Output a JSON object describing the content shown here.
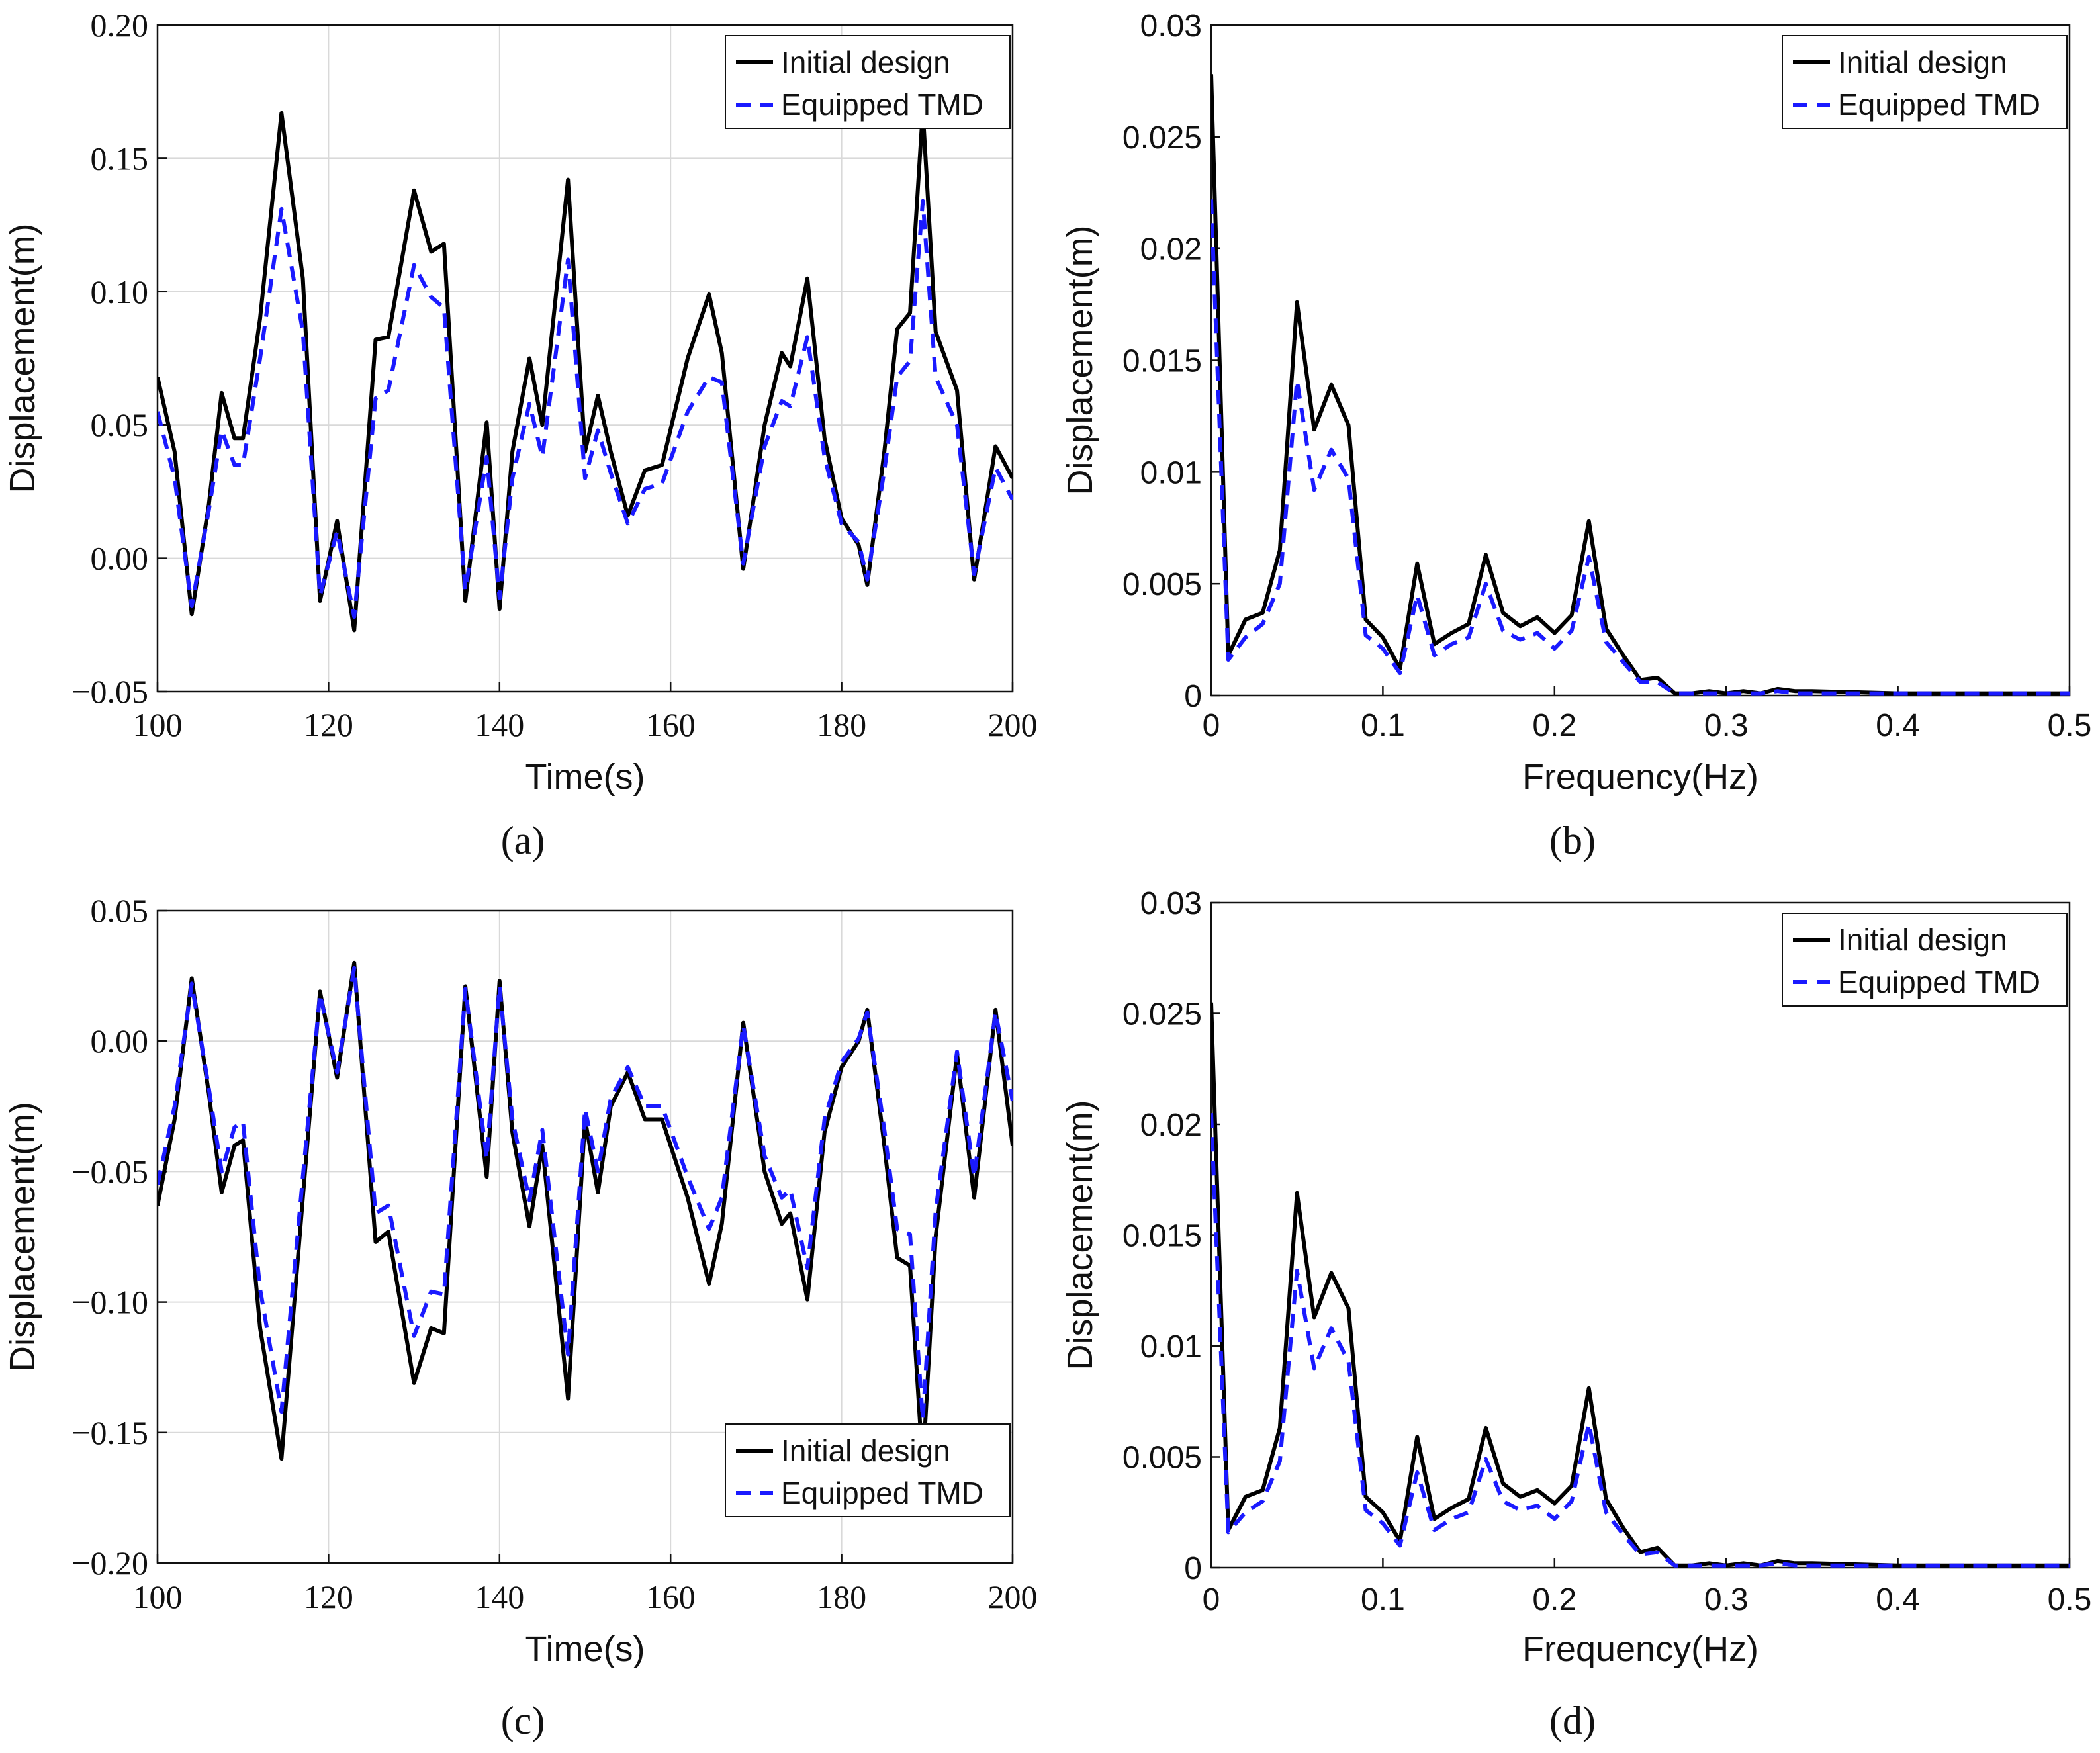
{
  "chart_data": [
    {
      "id": "a",
      "type": "line",
      "caption": "(a)",
      "xlabel": "Time(s)",
      "ylabel": "Displacement(m)",
      "xlim": [
        100,
        200
      ],
      "ylim": [
        -0.05,
        0.2
      ],
      "xticks": [
        "100",
        "120",
        "140",
        "160",
        "180",
        "200"
      ],
      "yticks": [
        "−0.05",
        "0.00",
        "0.05",
        "0.10",
        "0.15",
        "0.20"
      ],
      "grid": true,
      "legend_position": "top-right",
      "series": [
        {
          "name": "Initial design",
          "color": "#000000",
          "style": "solid",
          "x": [
            100,
            102,
            104,
            106,
            107.5,
            109,
            110,
            112,
            114.5,
            117,
            119,
            121,
            123,
            125.5,
            127,
            130,
            132,
            133.5,
            136,
            138.5,
            140,
            141.5,
            143.5,
            145,
            148,
            150,
            151.5,
            153,
            155,
            157,
            159,
            162,
            164.5,
            166,
            168.5,
            171,
            173,
            174,
            176,
            178,
            180,
            182,
            183,
            185,
            186.5,
            188,
            189.5,
            191,
            193.5,
            195.5,
            198,
            200
          ],
          "y": [
            0.068,
            0.04,
            -0.021,
            0.02,
            0.062,
            0.045,
            0.045,
            0.09,
            0.167,
            0.105,
            -0.016,
            0.014,
            -0.027,
            0.082,
            0.083,
            0.138,
            0.115,
            0.118,
            -0.016,
            0.051,
            -0.019,
            0.04,
            0.075,
            0.05,
            0.142,
            0.04,
            0.061,
            0.04,
            0.016,
            0.033,
            0.035,
            0.075,
            0.099,
            0.077,
            -0.004,
            0.05,
            0.077,
            0.072,
            0.105,
            0.045,
            0.015,
            0.005,
            -0.01,
            0.04,
            0.086,
            0.092,
            0.168,
            0.085,
            0.063,
            -0.008,
            0.042,
            0.03
          ]
        },
        {
          "name": "Equipped TMD",
          "color": "#1a1aff",
          "style": "dashed",
          "x": [
            100,
            102,
            104,
            106,
            107.5,
            109,
            110,
            112,
            114.5,
            117,
            119,
            121,
            123,
            125.5,
            127,
            130,
            132,
            133.5,
            136,
            138.5,
            140,
            141.5,
            143.5,
            145,
            148,
            150,
            151.5,
            153,
            155,
            157,
            159,
            162,
            164.5,
            166,
            168.5,
            171,
            173,
            174,
            176,
            178,
            180,
            182,
            183,
            185,
            186.5,
            188,
            189.5,
            191,
            193.5,
            195.5,
            198,
            200
          ],
          "y": [
            0.055,
            0.03,
            -0.018,
            0.018,
            0.048,
            0.035,
            0.035,
            0.075,
            0.131,
            0.085,
            -0.014,
            0.01,
            -0.022,
            0.06,
            0.063,
            0.11,
            0.098,
            0.094,
            -0.012,
            0.038,
            -0.015,
            0.03,
            0.058,
            0.038,
            0.112,
            0.03,
            0.048,
            0.032,
            0.013,
            0.026,
            0.028,
            0.055,
            0.068,
            0.066,
            -0.002,
            0.042,
            0.059,
            0.057,
            0.083,
            0.038,
            0.013,
            0.006,
            -0.008,
            0.033,
            0.068,
            0.074,
            0.134,
            0.068,
            0.05,
            -0.006,
            0.034,
            0.022
          ]
        }
      ]
    },
    {
      "id": "b",
      "type": "line",
      "caption": "(b)",
      "xlabel": "Frequency(Hz)",
      "ylabel": "Displacement(m)",
      "xlim": [
        0,
        0.5
      ],
      "ylim": [
        0,
        0.03
      ],
      "xticks": [
        "0",
        "0.1",
        "0.2",
        "0.3",
        "0.4",
        "0.5"
      ],
      "yticks": [
        "0",
        "0.005",
        "0.01",
        "0.015",
        "0.02",
        "0.025",
        "0.03"
      ],
      "grid": false,
      "legend_position": "top-right",
      "series": [
        {
          "name": "Initial design",
          "color": "#000000",
          "style": "solid",
          "x": [
            0,
            0.01,
            0.02,
            0.03,
            0.04,
            0.05,
            0.06,
            0.07,
            0.08,
            0.09,
            0.1,
            0.11,
            0.12,
            0.13,
            0.14,
            0.15,
            0.16,
            0.17,
            0.18,
            0.19,
            0.2,
            0.21,
            0.22,
            0.23,
            0.24,
            0.25,
            0.26,
            0.27,
            0.28,
            0.29,
            0.3,
            0.31,
            0.32,
            0.33,
            0.34,
            0.35,
            0.4,
            0.45,
            0.5
          ],
          "y": [
            0.0278,
            0.0018,
            0.0034,
            0.0037,
            0.0065,
            0.0176,
            0.0119,
            0.0139,
            0.0121,
            0.0034,
            0.0026,
            0.0012,
            0.0059,
            0.0023,
            0.0028,
            0.0032,
            0.0063,
            0.0037,
            0.0031,
            0.0035,
            0.0028,
            0.0036,
            0.0078,
            0.003,
            0.0018,
            0.0007,
            0.0008,
            0.0001,
            0.0001,
            0.0002,
            0.0001,
            0.0002,
            0.0001,
            0.0003,
            0.0002,
            0.0002,
            0.0001,
            0.0001,
            0.0001
          ]
        },
        {
          "name": "Equipped TMD",
          "color": "#1a1aff",
          "style": "dashed",
          "x": [
            0,
            0.01,
            0.02,
            0.03,
            0.04,
            0.05,
            0.06,
            0.07,
            0.08,
            0.09,
            0.1,
            0.11,
            0.12,
            0.13,
            0.14,
            0.15,
            0.16,
            0.17,
            0.18,
            0.19,
            0.2,
            0.21,
            0.22,
            0.23,
            0.24,
            0.25,
            0.26,
            0.27,
            0.28,
            0.29,
            0.3,
            0.31,
            0.32,
            0.33,
            0.34,
            0.35,
            0.4,
            0.45,
            0.5
          ],
          "y": [
            0.0222,
            0.0016,
            0.0026,
            0.0032,
            0.005,
            0.0141,
            0.0092,
            0.011,
            0.0097,
            0.0027,
            0.0021,
            0.001,
            0.0045,
            0.0018,
            0.0023,
            0.0026,
            0.005,
            0.0029,
            0.0025,
            0.0028,
            0.0021,
            0.0029,
            0.0062,
            0.0024,
            0.0015,
            0.0006,
            0.0006,
            0.0001,
            0.0001,
            0.0001,
            0.0001,
            0.0001,
            0.0001,
            0.0002,
            0.0001,
            0.0001,
            0.0001,
            0.0001,
            0.0001
          ]
        }
      ]
    },
    {
      "id": "c",
      "type": "line",
      "caption": "(c)",
      "xlabel": "Time(s)",
      "ylabel": "Displacement(m)",
      "xlim": [
        100,
        200
      ],
      "ylim": [
        -0.2,
        0.05
      ],
      "xticks": [
        "100",
        "120",
        "140",
        "160",
        "180",
        "200"
      ],
      "yticks": [
        "−0.20",
        "−0.15",
        "−0.10",
        "−0.05",
        "0.00",
        "0.05"
      ],
      "grid": true,
      "legend_position": "bottom-right",
      "series": [
        {
          "name": "Initial design",
          "color": "#000000",
          "style": "solid",
          "x": [
            100,
            102,
            104,
            106,
            107.5,
            109,
            110,
            112,
            114.5,
            117,
            119,
            121,
            123,
            125.5,
            127,
            130,
            132,
            133.5,
            136,
            138.5,
            140,
            141.5,
            143.5,
            145,
            148,
            150,
            151.5,
            153,
            155,
            157,
            159,
            162,
            164.5,
            166,
            168.5,
            171,
            173,
            174,
            176,
            178,
            180,
            182,
            183,
            185,
            186.5,
            188,
            189.5,
            191,
            193.5,
            195.5,
            198,
            200
          ],
          "y": [
            -0.063,
            -0.03,
            0.024,
            -0.02,
            -0.058,
            -0.04,
            -0.038,
            -0.11,
            -0.16,
            -0.06,
            0.019,
            -0.014,
            0.03,
            -0.077,
            -0.073,
            -0.131,
            -0.11,
            -0.112,
            0.021,
            -0.052,
            0.023,
            -0.035,
            -0.071,
            -0.04,
            -0.137,
            -0.03,
            -0.058,
            -0.025,
            -0.012,
            -0.03,
            -0.03,
            -0.06,
            -0.093,
            -0.07,
            0.007,
            -0.05,
            -0.07,
            -0.066,
            -0.099,
            -0.035,
            -0.01,
            0.0,
            0.012,
            -0.04,
            -0.083,
            -0.086,
            -0.163,
            -0.075,
            -0.005,
            -0.06,
            0.012,
            -0.04
          ]
        },
        {
          "name": "Equipped TMD",
          "color": "#1a1aff",
          "style": "dashed",
          "x": [
            100,
            102,
            104,
            106,
            107.5,
            109,
            110,
            112,
            114.5,
            117,
            119,
            121,
            123,
            125.5,
            127,
            130,
            132,
            133.5,
            136,
            138.5,
            140,
            141.5,
            143.5,
            145,
            148,
            150,
            151.5,
            153,
            155,
            157,
            159,
            162,
            164.5,
            166,
            168.5,
            171,
            173,
            174,
            176,
            178,
            180,
            182,
            183,
            185,
            186.5,
            188,
            189.5,
            191,
            193.5,
            195.5,
            198,
            200
          ],
          "y": [
            -0.055,
            -0.025,
            0.022,
            -0.018,
            -0.05,
            -0.033,
            -0.031,
            -0.095,
            -0.142,
            -0.052,
            0.018,
            -0.012,
            0.028,
            -0.066,
            -0.063,
            -0.113,
            -0.096,
            -0.097,
            0.02,
            -0.045,
            0.021,
            -0.03,
            -0.061,
            -0.034,
            -0.12,
            -0.026,
            -0.05,
            -0.022,
            -0.01,
            -0.025,
            -0.025,
            -0.052,
            -0.072,
            -0.06,
            0.006,
            -0.044,
            -0.06,
            -0.057,
            -0.087,
            -0.03,
            -0.008,
            0.001,
            0.011,
            -0.034,
            -0.072,
            -0.074,
            -0.145,
            -0.065,
            -0.004,
            -0.052,
            0.011,
            -0.023
          ]
        }
      ]
    },
    {
      "id": "d",
      "type": "line",
      "caption": "(d)",
      "xlabel": "Frequency(Hz)",
      "ylabel": "Displacement(m)",
      "xlim": [
        0,
        0.5
      ],
      "ylim": [
        0,
        0.03
      ],
      "xticks": [
        "0",
        "0.1",
        "0.2",
        "0.3",
        "0.4",
        "0.5"
      ],
      "yticks": [
        "0",
        "0.005",
        "0.01",
        "0.015",
        "0.02",
        "0.025",
        "0.03"
      ],
      "grid": false,
      "legend_position": "top-right",
      "series": [
        {
          "name": "Initial design",
          "color": "#000000",
          "style": "solid",
          "x": [
            0,
            0.01,
            0.02,
            0.03,
            0.04,
            0.05,
            0.06,
            0.07,
            0.08,
            0.09,
            0.1,
            0.11,
            0.12,
            0.13,
            0.14,
            0.15,
            0.16,
            0.17,
            0.18,
            0.19,
            0.2,
            0.21,
            0.22,
            0.23,
            0.24,
            0.25,
            0.26,
            0.27,
            0.28,
            0.29,
            0.3,
            0.31,
            0.32,
            0.33,
            0.34,
            0.35,
            0.4,
            0.45,
            0.5
          ],
          "y": [
            0.0255,
            0.0017,
            0.0032,
            0.0035,
            0.0063,
            0.0169,
            0.0113,
            0.0133,
            0.0117,
            0.0032,
            0.0025,
            0.0012,
            0.0059,
            0.0022,
            0.0027,
            0.0031,
            0.0063,
            0.0038,
            0.0032,
            0.0035,
            0.0029,
            0.0037,
            0.0081,
            0.0031,
            0.0018,
            0.0007,
            0.0009,
            0.0001,
            0.0001,
            0.0002,
            0.0001,
            0.0002,
            0.0001,
            0.0003,
            0.0002,
            0.0002,
            0.0001,
            0.0001,
            0.0001
          ]
        },
        {
          "name": "Equipped TMD",
          "color": "#1a1aff",
          "style": "dashed",
          "x": [
            0,
            0.01,
            0.02,
            0.03,
            0.04,
            0.05,
            0.06,
            0.07,
            0.08,
            0.09,
            0.1,
            0.11,
            0.12,
            0.13,
            0.14,
            0.15,
            0.16,
            0.17,
            0.18,
            0.19,
            0.2,
            0.21,
            0.22,
            0.23,
            0.24,
            0.25,
            0.26,
            0.27,
            0.28,
            0.29,
            0.3,
            0.31,
            0.32,
            0.33,
            0.34,
            0.35,
            0.4,
            0.45,
            0.5
          ],
          "y": [
            0.0205,
            0.0016,
            0.0025,
            0.003,
            0.0048,
            0.0134,
            0.009,
            0.0108,
            0.0093,
            0.0026,
            0.002,
            0.001,
            0.0043,
            0.0017,
            0.0022,
            0.0025,
            0.0049,
            0.003,
            0.0026,
            0.0028,
            0.0022,
            0.003,
            0.0065,
            0.0025,
            0.0015,
            0.0006,
            0.0007,
            0.0001,
            0.0001,
            0.0001,
            0.0001,
            0.0001,
            0.0001,
            0.0002,
            0.0001,
            0.0001,
            0.0001,
            0.0001,
            0.0001
          ]
        }
      ]
    }
  ]
}
